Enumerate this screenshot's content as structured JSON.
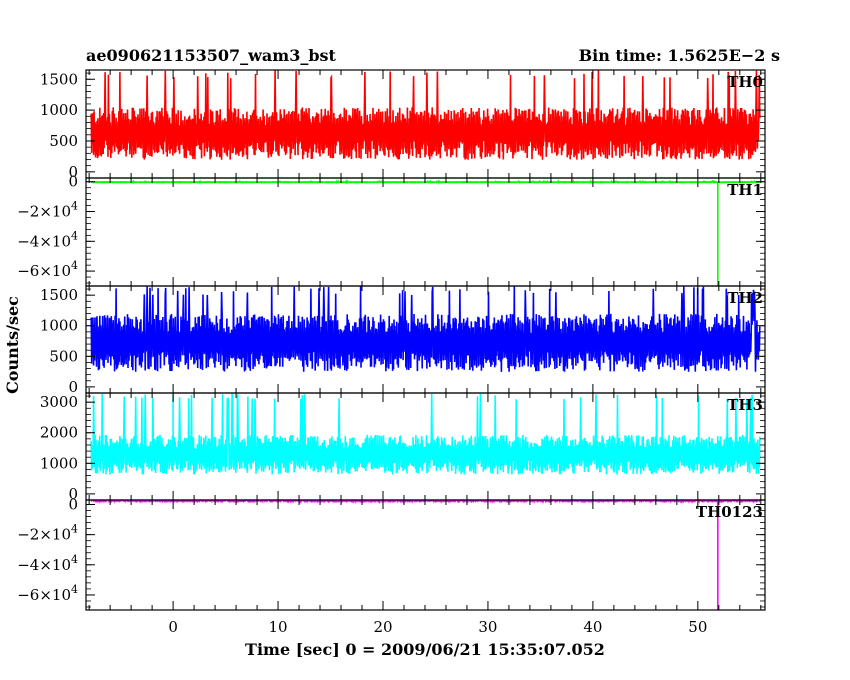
{
  "header": {
    "title": "ae090621153507_wam3_bst",
    "bin_time": "Bin time: 1.5625E−2 s"
  },
  "axes": {
    "ylabel": "Counts/sec",
    "xlabel": "Time [sec] 0 = 2009/06/21 15:35:07.052"
  },
  "chart_data": {
    "type": "line",
    "title": "ae090621153507_wam3_bst",
    "xlabel": "Time [sec] 0 = 2009/06/21 15:35:07.052",
    "ylabel": "Counts/sec",
    "xlim": [
      -8.3,
      56.4
    ],
    "x_ticks": [
      0,
      10,
      20,
      30,
      40,
      50
    ],
    "x_step": 0.015625,
    "panels": [
      {
        "name": "TH0",
        "color": "#ff0000",
        "ylim": [
          -100,
          1650
        ],
        "y_ticks": [
          0,
          500,
          1000,
          1500
        ],
        "y_tick_labels": [
          "0",
          "500",
          "1000",
          "1500"
        ],
        "x_range": [
          -7.8,
          55.9
        ],
        "series": [
          {
            "name": "TH0",
            "mean": 620,
            "spread": 340,
            "min": 50,
            "max": 1650
          }
        ]
      },
      {
        "name": "TH1",
        "color": "#00ff00",
        "ylim": [
          -70000,
          2500
        ],
        "y_ticks": [
          0,
          -20000,
          -40000,
          -60000
        ],
        "y_tick_labels": [
          [
            "0",
            ""
          ],
          [
            "−2×10",
            "4"
          ],
          [
            "−4×10",
            "4"
          ],
          [
            "−6×10",
            "4"
          ]
        ],
        "x_range": [
          -7.8,
          55.9
        ],
        "series": [
          {
            "name": "TH1",
            "mean": -300,
            "spread": 150,
            "min": -900,
            "max": 300,
            "dropout_x": 51.9,
            "dropout_y": -70000
          }
        ]
      },
      {
        "name": "TH2",
        "color": "#0000ff",
        "ylim": [
          -100,
          1650
        ],
        "y_ticks": [
          0,
          500,
          1000,
          1500
        ],
        "y_tick_labels": [
          "0",
          "500",
          "1000",
          "1500"
        ],
        "x_range": [
          -7.8,
          55.9
        ],
        "series": [
          {
            "name": "TH2",
            "mean": 720,
            "spread": 380,
            "min": 20,
            "max": 1650
          }
        ]
      },
      {
        "name": "TH3",
        "color": "#00ffff",
        "ylim": [
          -200,
          3300
        ],
        "y_ticks": [
          0,
          1000,
          2000,
          3000
        ],
        "y_tick_labels": [
          "0",
          "1000",
          "2000",
          "3000"
        ],
        "x_range": [
          -7.8,
          55.9
        ],
        "series": [
          {
            "name": "TH3",
            "mean": 1280,
            "spread": 520,
            "min": 350,
            "max": 3300,
            "spike_x": 0.0,
            "spike_y": 3300
          }
        ]
      },
      {
        "name": "TH0123",
        "color": "#ff00ff",
        "ylim": [
          -70000,
          3000
        ],
        "y_ticks": [
          0,
          -20000,
          -40000,
          -60000
        ],
        "y_tick_labels": [
          [
            "0",
            ""
          ],
          [
            "−2×10",
            "4"
          ],
          [
            "−4×10",
            "4"
          ],
          [
            "−6×10",
            "4"
          ]
        ],
        "x_range": [
          -7.8,
          55.9
        ],
        "series": [
          {
            "name": "TH0123",
            "mean": 2900,
            "spread": 450,
            "min": 1500,
            "max": 4200,
            "dropout_x": 51.9,
            "dropout_y": -70000
          }
        ]
      }
    ]
  }
}
